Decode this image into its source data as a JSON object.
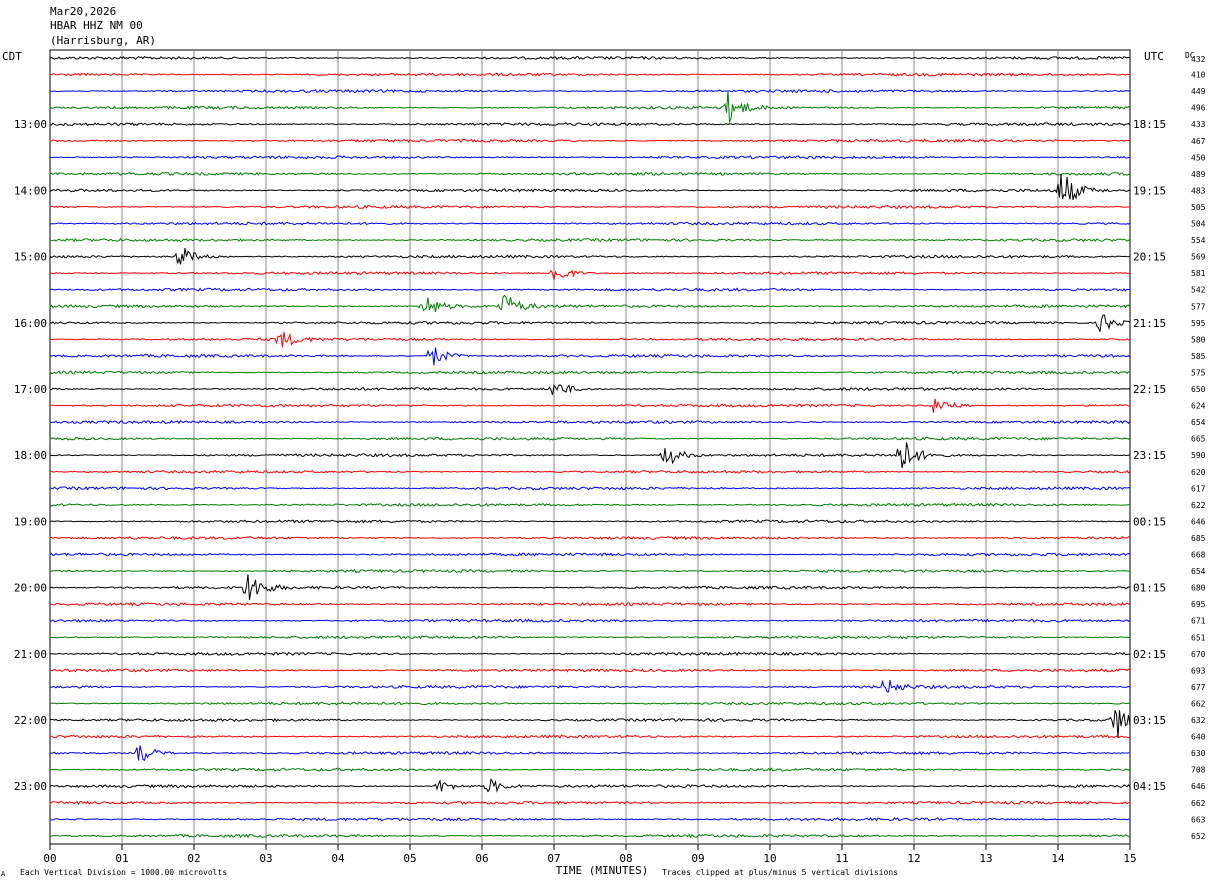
{
  "header": {
    "date": "Mar20,2026",
    "station": "HBAR HHZ NM 00",
    "location": "(Harrisburg, AR)"
  },
  "axis": {
    "left_zone": "CDT",
    "right_zone": "UTC",
    "dc_label": "DC",
    "xlabel": "TIME (MINUTES)"
  },
  "footer": {
    "left_note": "Each Vertical Division = 1000.00 microvolts",
    "right_note": "Traces clipped at plus/minus 5 vertical divisions",
    "corner_mark": "A"
  },
  "colors": {
    "black": "#000000",
    "red": "#ff0000",
    "blue": "#0000ff",
    "green": "#007f00"
  },
  "chart_data": {
    "type": "line",
    "xlim": [
      0,
      15
    ],
    "x_ticks": [
      "00",
      "01",
      "02",
      "03",
      "04",
      "05",
      "06",
      "07",
      "08",
      "09",
      "10",
      "11",
      "12",
      "13",
      "14",
      "15"
    ],
    "trace_color_cycle": [
      "black",
      "red",
      "blue",
      "green"
    ],
    "trace_count": 48,
    "left_hour_labels": [
      {
        "trace": 4,
        "label": "13:00"
      },
      {
        "trace": 8,
        "label": "14:00"
      },
      {
        "trace": 12,
        "label": "15:00"
      },
      {
        "trace": 16,
        "label": "16:00"
      },
      {
        "trace": 20,
        "label": "17:00"
      },
      {
        "trace": 24,
        "label": "18:00"
      },
      {
        "trace": 28,
        "label": "19:00"
      },
      {
        "trace": 32,
        "label": "20:00"
      },
      {
        "trace": 36,
        "label": "21:00"
      },
      {
        "trace": 40,
        "label": "22:00"
      },
      {
        "trace": 44,
        "label": "23:00"
      }
    ],
    "right_hour_labels": [
      {
        "trace": 4,
        "label": "18:15"
      },
      {
        "trace": 8,
        "label": "19:15"
      },
      {
        "trace": 12,
        "label": "20:15"
      },
      {
        "trace": 16,
        "label": "21:15"
      },
      {
        "trace": 20,
        "label": "22:15"
      },
      {
        "trace": 24,
        "label": "23:15"
      },
      {
        "trace": 28,
        "label": "00:15"
      },
      {
        "trace": 32,
        "label": "01:15"
      },
      {
        "trace": 36,
        "label": "02:15"
      },
      {
        "trace": 40,
        "label": "03:15"
      },
      {
        "trace": 44,
        "label": "04:15"
      }
    ],
    "dc_offsets": [
      "432",
      "410",
      "449",
      "496",
      "433",
      "467",
      "450",
      "489",
      "483",
      "505",
      "504",
      "554",
      "569",
      "581",
      "542",
      "577",
      "595",
      "580",
      "585",
      "575",
      "650",
      "624",
      "654",
      "665",
      "590",
      "620",
      "617",
      "622",
      "646",
      "685",
      "668",
      "654",
      "680",
      "695",
      "671",
      "651",
      "670",
      "693",
      "677",
      "662",
      "632",
      "640",
      "630",
      "708",
      "646",
      "662",
      "663",
      "652"
    ],
    "events": [
      {
        "trace": 3,
        "minute": 9.4,
        "amp": 2.2
      },
      {
        "trace": 8,
        "minute": 14.05,
        "amp": 2.8
      },
      {
        "trace": 12,
        "minute": 1.8,
        "amp": 1.6
      },
      {
        "trace": 13,
        "minute": 7.0,
        "amp": 1.5
      },
      {
        "trace": 15,
        "minute": 5.2,
        "amp": 1.8
      },
      {
        "trace": 15,
        "minute": 6.3,
        "amp": 1.8
      },
      {
        "trace": 16,
        "minute": 14.6,
        "amp": 1.4
      },
      {
        "trace": 17,
        "minute": 3.2,
        "amp": 1.2
      },
      {
        "trace": 18,
        "minute": 5.3,
        "amp": 1.6
      },
      {
        "trace": 20,
        "minute": 7.0,
        "amp": 1.3
      },
      {
        "trace": 21,
        "minute": 12.3,
        "amp": 1.3
      },
      {
        "trace": 24,
        "minute": 11.8,
        "amp": 2.8
      },
      {
        "trace": 24,
        "minute": 8.55,
        "amp": 1.6
      },
      {
        "trace": 32,
        "minute": 2.75,
        "amp": 2.2
      },
      {
        "trace": 38,
        "minute": 11.6,
        "amp": 1.1
      },
      {
        "trace": 40,
        "minute": 14.8,
        "amp": 2.6
      },
      {
        "trace": 42,
        "minute": 1.25,
        "amp": 1.4
      },
      {
        "trace": 44,
        "minute": 6.1,
        "amp": 1.0
      },
      {
        "trace": 44,
        "minute": 5.4,
        "amp": 0.9
      }
    ]
  }
}
